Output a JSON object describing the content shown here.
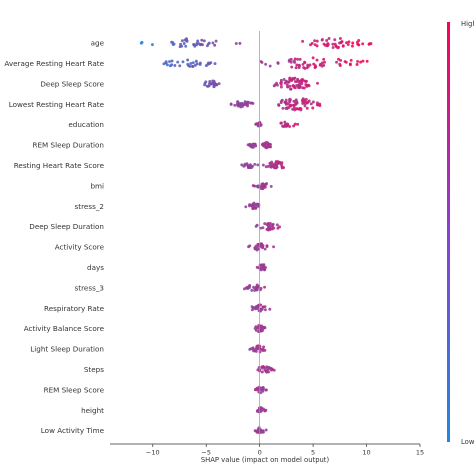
{
  "chart_data": {
    "type": "scatter",
    "subtype": "shap-beeswarm-summary",
    "xlabel": "SHAP value (impact on model output)",
    "xlim": [
      -14,
      15
    ],
    "x_ticks": [
      -10,
      -5,
      0,
      5,
      10,
      15
    ],
    "x_tick_labels": [
      "−10",
      "−5",
      "0",
      "5",
      "10",
      "15"
    ],
    "grid": false,
    "zero_line": true,
    "colors": {
      "low": "#1e88e5",
      "high": "#ff0052",
      "zero_line": "#999999",
      "axis": "#333333"
    },
    "colorbar": {
      "high_label": "High",
      "low_label": "Low",
      "position": "right"
    },
    "features": [
      {
        "name": "age",
        "clusters": [
          [
            -12,
            -1,
            12
          ],
          [
            2,
            12,
            14
          ]
        ]
      },
      {
        "name": "Average Resting Heart Rate",
        "clusters": [
          [
            -11,
            -2.5,
            10
          ],
          [
            -2.5,
            13,
            18
          ]
        ]
      },
      {
        "name": "Deep Sleep Score",
        "clusters": [
          [
            -6,
            -3,
            8
          ],
          [
            0.5,
            6,
            20
          ]
        ]
      },
      {
        "name": "Lowest Resting Heart Rate",
        "clusters": [
          [
            -3.5,
            -0.2,
            10
          ],
          [
            0,
            7,
            20
          ]
        ]
      },
      {
        "name": "education",
        "clusters": [
          [
            -0.5,
            0.5,
            5
          ],
          [
            1,
            4,
            6
          ]
        ]
      },
      {
        "name": "REM Sleep Duration",
        "clusters": [
          [
            -1.5,
            0,
            6
          ],
          [
            0,
            1.5,
            8
          ]
        ]
      },
      {
        "name": "Resting Heart Rate Score",
        "clusters": [
          [
            -2,
            0,
            6
          ],
          [
            0,
            3,
            12
          ]
        ]
      },
      {
        "name": "bmi",
        "clusters": [
          [
            -1,
            1.5,
            8
          ]
        ]
      },
      {
        "name": "stress_2",
        "clusters": [
          [
            -1.5,
            0.5,
            8
          ]
        ]
      },
      {
        "name": "Deep Sleep Duration",
        "clusters": [
          [
            -1,
            2.5,
            9
          ]
        ]
      },
      {
        "name": "Activity Score",
        "clusters": [
          [
            -1.5,
            1.5,
            9
          ]
        ]
      },
      {
        "name": "days",
        "clusters": [
          [
            -0.5,
            1,
            8
          ]
        ]
      },
      {
        "name": "stress_3",
        "clusters": [
          [
            -2,
            1,
            8
          ]
        ]
      },
      {
        "name": "Respiratory Rate",
        "clusters": [
          [
            -1.5,
            1.5,
            8
          ]
        ]
      },
      {
        "name": "Activity Balance Score",
        "clusters": [
          [
            -1,
            1,
            8
          ]
        ]
      },
      {
        "name": "Light Sleep Duration",
        "clusters": [
          [
            -1.5,
            1.2,
            8
          ]
        ]
      },
      {
        "name": "Steps",
        "clusters": [
          [
            -0.8,
            1.8,
            8
          ]
        ]
      },
      {
        "name": "REM Sleep Score",
        "clusters": [
          [
            -0.8,
            1,
            7
          ]
        ]
      },
      {
        "name": "height",
        "clusters": [
          [
            -0.6,
            0.8,
            7
          ]
        ]
      },
      {
        "name": "Low Activity Time",
        "clusters": [
          [
            -0.8,
            0.8,
            7
          ]
        ]
      }
    ]
  }
}
